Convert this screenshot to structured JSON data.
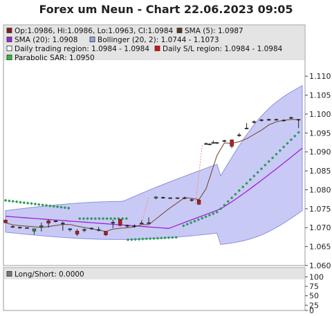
{
  "title": "Forex um Neun - Chart 22.06.2023 09:05",
  "colors": {
    "band_fill": "#c8caf5",
    "band_stroke": "#8b90dd",
    "sma5": "#7a4b3a",
    "sma20": "#a020d8",
    "sar": "#2e9a5a",
    "candle_up": "#1a9a3a",
    "candle_down": "#c01818",
    "gap_line": "#ff8080",
    "grid": "#dddddd",
    "legend_bg": "#e4e4e4"
  },
  "legend": [
    {
      "label": "Op:1.0986, Hi:1.0986, Lo:1.0963, Cl:1.0984",
      "color": "#8b1a1a",
      "icon": "ohlc-swatch-icon"
    },
    {
      "label": "SMA (5): 1.0987",
      "color": "#5c3a1e",
      "icon": "sma5-swatch-icon"
    },
    {
      "label": "SMA (20): 1.0908",
      "color": "#9a2ad8",
      "icon": "sma20-swatch-icon"
    },
    {
      "label": "Bollinger (20, 2): 1.0744 - 1.1073",
      "color": "#9aa0e8",
      "icon": "bollinger-swatch-icon"
    },
    {
      "label": "Daily trading region: 1.0984 - 1.0984",
      "color": "#ffffff",
      "icon": "trading-region-swatch-icon"
    },
    {
      "label": "Daily S/L region: 1.0984 - 1.0984",
      "color": "#dd1010",
      "icon": "sl-region-swatch-icon"
    },
    {
      "label": "Parabolic SAR: 1.0950",
      "color": "#2ec02e",
      "icon": "sar-swatch-icon"
    }
  ],
  "sub_legend": {
    "label": "Long/Short: 0.0000",
    "color": "#777777",
    "icon": "longshort-swatch-icon"
  },
  "chart_data": [
    {
      "type": "candlestick",
      "title": "Forex um Neun - Chart 22.06.2023 09:05",
      "ylim": [
        1.06,
        1.112
      ],
      "y_ticks": [
        "1.060",
        "1.065",
        "1.070",
        "1.075",
        "1.080",
        "1.085",
        "1.090",
        "1.095",
        "1.100",
        "1.105",
        "1.110"
      ],
      "x_index_range": [
        0,
        60
      ],
      "grid": false,
      "legend_position": "top",
      "candles": [
        {
          "x": 0,
          "o": 1.072,
          "h": 1.0722,
          "l": 1.0712,
          "c": 1.0713
        },
        {
          "x": 2,
          "o": 1.0703,
          "h": 1.0706,
          "l": 1.07,
          "c": 1.0702
        },
        {
          "x": 4,
          "o": 1.07,
          "h": 1.0703,
          "l": 1.0698,
          "c": 1.0701
        },
        {
          "x": 6,
          "o": 1.07,
          "h": 1.0701,
          "l": 1.0698,
          "c": 1.0699
        },
        {
          "x": 8,
          "o": 1.0691,
          "h": 1.0697,
          "l": 1.0682,
          "c": 1.0697
        },
        {
          "x": 10,
          "o": 1.0702,
          "h": 1.0713,
          "l": 1.069,
          "c": 1.0705
        },
        {
          "x": 12,
          "o": 1.0718,
          "h": 1.0722,
          "l": 1.07,
          "c": 1.0712
        },
        {
          "x": 14,
          "o": 1.0718,
          "h": 1.0718,
          "l": 1.0714,
          "c": 1.0716
        },
        {
          "x": 16,
          "o": 1.0712,
          "h": 1.0716,
          "l": 1.0692,
          "c": 1.0712
        },
        {
          "x": 18,
          "o": 1.0696,
          "h": 1.0698,
          "l": 1.069,
          "c": 1.0697
        },
        {
          "x": 20,
          "o": 1.0691,
          "h": 1.0696,
          "l": 1.0678,
          "c": 1.0683
        },
        {
          "x": 22,
          "o": 1.0693,
          "h": 1.0698,
          "l": 1.0688,
          "c": 1.0695
        },
        {
          "x": 24,
          "o": 1.0699,
          "h": 1.07,
          "l": 1.0694,
          "c": 1.0697
        },
        {
          "x": 26,
          "o": 1.0695,
          "h": 1.0702,
          "l": 1.069,
          "c": 1.0694
        },
        {
          "x": 28,
          "o": 1.069,
          "h": 1.069,
          "l": 1.0678,
          "c": 1.0681
        },
        {
          "x": 30,
          "o": 1.0714,
          "h": 1.0721,
          "l": 1.0699,
          "c": 1.0714
        },
        {
          "x": 32,
          "o": 1.0722,
          "h": 1.0722,
          "l": 1.0703,
          "c": 1.0706
        },
        {
          "x": 34,
          "o": 1.0706,
          "h": 1.0708,
          "l": 1.07,
          "c": 1.0704
        },
        {
          "x": 36,
          "o": 1.0704,
          "h": 1.0709,
          "l": 1.07,
          "c": 1.0705
        },
        {
          "x": 38,
          "o": 1.0712,
          "h": 1.0719,
          "l": 1.071,
          "c": 1.0712
        },
        {
          "x": 40,
          "o": 1.0713,
          "h": 1.0727,
          "l": 1.0711,
          "c": 1.0712
        },
        {
          "x": 42,
          "o": 1.0778,
          "h": 1.0783,
          "l": 1.0775,
          "c": 1.0781
        },
        {
          "x": 44,
          "o": 1.0779,
          "h": 1.0782,
          "l": 1.0777,
          "c": 1.078
        },
        {
          "x": 46,
          "o": 1.0779,
          "h": 1.078,
          "l": 1.0777,
          "c": 1.0778
        },
        {
          "x": 48,
          "o": 1.0779,
          "h": 1.078,
          "l": 1.0777,
          "c": 1.0778
        },
        {
          "x": 50,
          "o": 1.0778,
          "h": 1.0782,
          "l": 1.0775,
          "c": 1.0779
        },
        {
          "x": 52,
          "o": 1.0774,
          "h": 1.0777,
          "l": 1.0769,
          "c": 1.0773
        },
        {
          "x": 54,
          "o": 1.0773,
          "h": 1.0775,
          "l": 1.076,
          "c": 1.0762
        },
        {
          "x": 56,
          "o": 1.0921,
          "h": 1.0925,
          "l": 1.0919,
          "c": 1.0922
        },
        {
          "x": 57,
          "o": 1.0921,
          "h": 1.0923,
          "l": 1.0919,
          "c": 1.0921
        },
        {
          "x": 58,
          "o": 1.0924,
          "h": 1.093,
          "l": 1.0922,
          "c": 1.0925
        }
      ],
      "candles_2": [
        {
          "x": 0,
          "o": 1.0925,
          "h": 1.0926,
          "l": 1.0921,
          "c": 1.0923
        },
        {
          "x": 2,
          "o": 1.093,
          "h": 1.0932,
          "l": 1.0926,
          "c": 1.0928
        },
        {
          "x": 4,
          "o": 1.0932,
          "h": 1.0932,
          "l": 1.091,
          "c": 1.0915
        },
        {
          "x": 6,
          "o": 1.0945,
          "h": 1.095,
          "l": 1.094,
          "c": 1.0945
        },
        {
          "x": 8,
          "o": 1.0963,
          "h": 1.0976,
          "l": 1.096,
          "c": 1.0963
        },
        {
          "x": 10,
          "o": 1.0978,
          "h": 1.0983,
          "l": 1.0975,
          "c": 1.098
        },
        {
          "x": 12,
          "o": 1.0985,
          "h": 1.0987,
          "l": 1.098,
          "c": 1.0984
        },
        {
          "x": 14,
          "o": 1.0986,
          "h": 1.0988,
          "l": 1.0982,
          "c": 1.0985
        },
        {
          "x": 16,
          "o": 1.0986,
          "h": 1.0988,
          "l": 1.0983,
          "c": 1.0986
        },
        {
          "x": 18,
          "o": 1.0984,
          "h": 1.0986,
          "l": 1.098,
          "c": 1.0983
        },
        {
          "x": 20,
          "o": 1.0991,
          "h": 1.0993,
          "l": 1.0987,
          "c": 1.099
        },
        {
          "x": 22,
          "o": 1.0986,
          "h": 1.0986,
          "l": 1.0963,
          "c": 1.0984
        }
      ]
    },
    {
      "type": "bar",
      "title": "",
      "ylim": [
        0,
        110
      ],
      "y_ticks": [
        "0",
        "25",
        "50",
        "75",
        "100"
      ],
      "series": [
        {
          "name": "Long/Short",
          "values": [
            0
          ]
        }
      ]
    }
  ]
}
